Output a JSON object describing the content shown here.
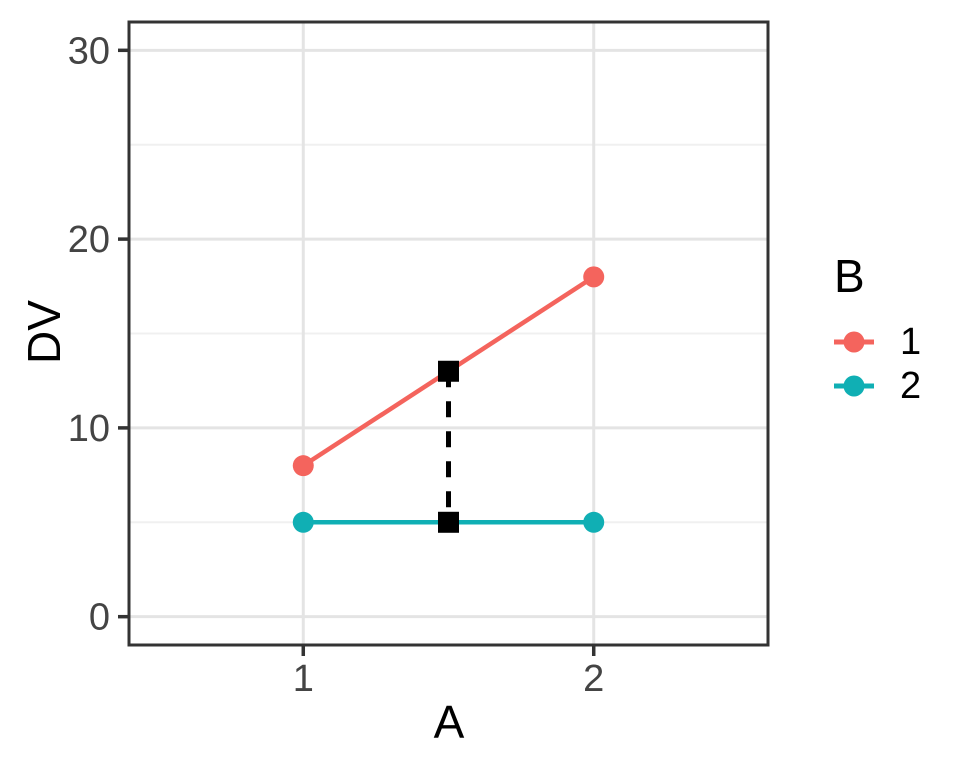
{
  "chart_data": {
    "type": "line",
    "title": "",
    "xlabel": "A",
    "ylabel": "DV",
    "x": [
      1,
      2
    ],
    "xticks": [
      1,
      2
    ],
    "xtick_labels": [
      "1",
      "2"
    ],
    "yticks": [
      0,
      10,
      20,
      30
    ],
    "ytick_labels": [
      "0",
      "10",
      "20",
      "30"
    ],
    "yticks_minor": [
      5,
      15,
      25
    ],
    "xlim": [
      0.4,
      2.6
    ],
    "ylim": [
      -1.5,
      31.5
    ],
    "grid": true,
    "series": [
      {
        "name": "1",
        "values": [
          8,
          18
        ],
        "color": "#F4645D"
      },
      {
        "name": "2",
        "values": [
          5,
          5
        ],
        "color": "#10AFB4"
      }
    ],
    "annotation": {
      "description": "dashed vertical difference segment with square end markers",
      "x": 1.5,
      "y_from": 5,
      "y_to": 13,
      "line_style": "dashed",
      "marker": "square",
      "color": "#000000"
    },
    "legend": {
      "title": "B",
      "position": "right",
      "entries": [
        {
          "label": "1",
          "color": "#F4645D"
        },
        {
          "label": "2",
          "color": "#10AFB4"
        }
      ]
    },
    "theme": {
      "background": "#FFFFFF",
      "panel_border": "#333333",
      "grid_major": "#E4E4E4",
      "grid_minor": "#F0F0F0",
      "tick_color": "#333333",
      "tick_label_color": "#444444",
      "axis_title_color": "#000000"
    }
  }
}
